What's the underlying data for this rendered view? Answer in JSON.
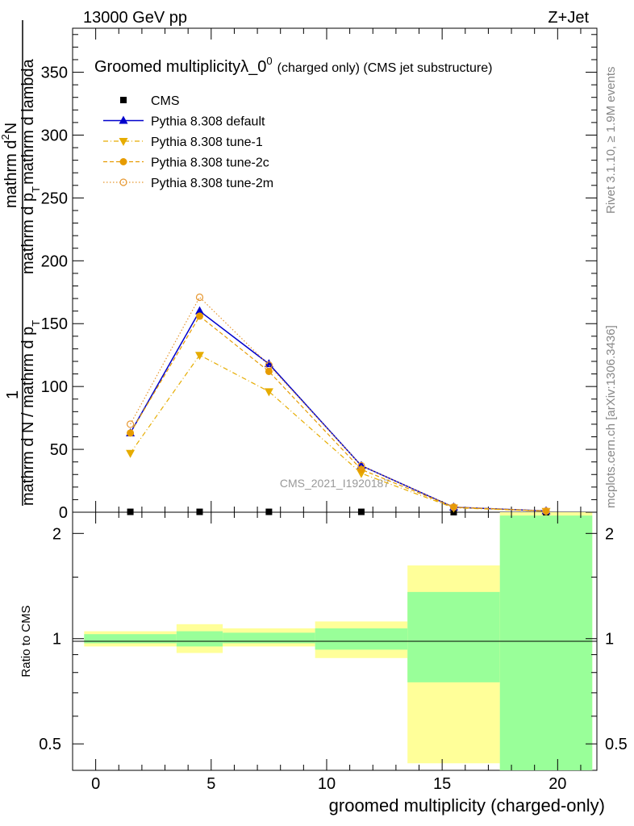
{
  "header": {
    "left": "13000 GeV pp",
    "right": "Z+Jet"
  },
  "side_labels": {
    "rivet": "Rivet 3.1.10, ≥ 1.9M events",
    "mcplots": "mcplots.cern.ch [arXiv:1306.3436]"
  },
  "watermark": "CMS_2021_I1920187",
  "chart_data": [
    {
      "type": "line",
      "title": "Groomed multiplicityλ_0⁰",
      "title_main": "Groomed multiplicityλ_0",
      "title_sup": "0",
      "title_suffix": "(charged only) (CMS jet substructure)",
      "ylabel_parts": [
        "1",
        "mathrm d N / mathrm d p",
        "T",
        "mathrm d p",
        "T",
        "mathrm d lambda",
        "mathrm d",
        "2",
        "N"
      ],
      "xlim": [
        -1,
        21.7
      ],
      "ylim": [
        0,
        385
      ],
      "yticks": [
        0,
        50,
        100,
        150,
        200,
        250,
        300,
        350
      ],
      "x": [
        1.5,
        4.5,
        7.5,
        11.5,
        15.5,
        19.5
      ],
      "series": [
        {
          "name": "CMS",
          "color": "#000000",
          "marker": "square",
          "values": [
            0.3,
            0.3,
            0.3,
            0.3,
            0.05,
            0.02
          ]
        },
        {
          "name": "Pythia 8.308 default",
          "color": "#0000cc",
          "marker": "triangle-up",
          "line": "solid",
          "values": [
            63,
            160,
            118,
            37,
            4,
            1
          ]
        },
        {
          "name": "Pythia 8.308 tune-1",
          "color": "#e6ac00",
          "marker": "triangle-down",
          "line": "dashdot",
          "values": [
            47,
            125,
            96,
            31,
            3.5,
            0.8
          ]
        },
        {
          "name": "Pythia 8.308 tune-2c",
          "color": "#e69b00",
          "marker": "circle",
          "line": "dashed",
          "values": [
            63,
            156,
            112,
            34,
            4,
            0.9
          ]
        },
        {
          "name": "Pythia 8.308 tune-2m",
          "color": "#e6962e",
          "marker": "circle-open",
          "line": "dotted",
          "values": [
            70,
            171,
            117,
            37,
            4.2,
            1
          ]
        }
      ]
    },
    {
      "type": "area",
      "ylabel": "Ratio to CMS",
      "xlabel": "groomed multiplicity (charged-only)",
      "xlim": [
        -1,
        21.7
      ],
      "ylim": [
        0.42,
        2.3
      ],
      "log_y": true,
      "yticks": [
        0.5,
        1,
        2
      ],
      "xticks": [
        0,
        5,
        10,
        15,
        20
      ],
      "bands": [
        {
          "x0": -0.5,
          "x1": 3.5,
          "yellow": [
            0.95,
            1.05
          ],
          "green": [
            0.97,
            1.03
          ]
        },
        {
          "x0": 3.5,
          "x1": 5.5,
          "yellow": [
            0.91,
            1.1
          ],
          "green": [
            0.95,
            1.05
          ]
        },
        {
          "x0": 5.5,
          "x1": 9.5,
          "yellow": [
            0.95,
            1.07
          ],
          "green": [
            0.97,
            1.04
          ]
        },
        {
          "x0": 9.5,
          "x1": 13.5,
          "yellow": [
            0.88,
            1.12
          ],
          "green": [
            0.93,
            1.07
          ]
        },
        {
          "x0": 13.5,
          "x1": 17.5,
          "yellow": [
            0.44,
            1.62
          ],
          "green": [
            0.75,
            1.36
          ]
        },
        {
          "x0": 17.5,
          "x1": 21.5,
          "yellow": [
            0.3,
            2.6
          ],
          "green": [
            0.3,
            2.25
          ]
        }
      ]
    }
  ]
}
